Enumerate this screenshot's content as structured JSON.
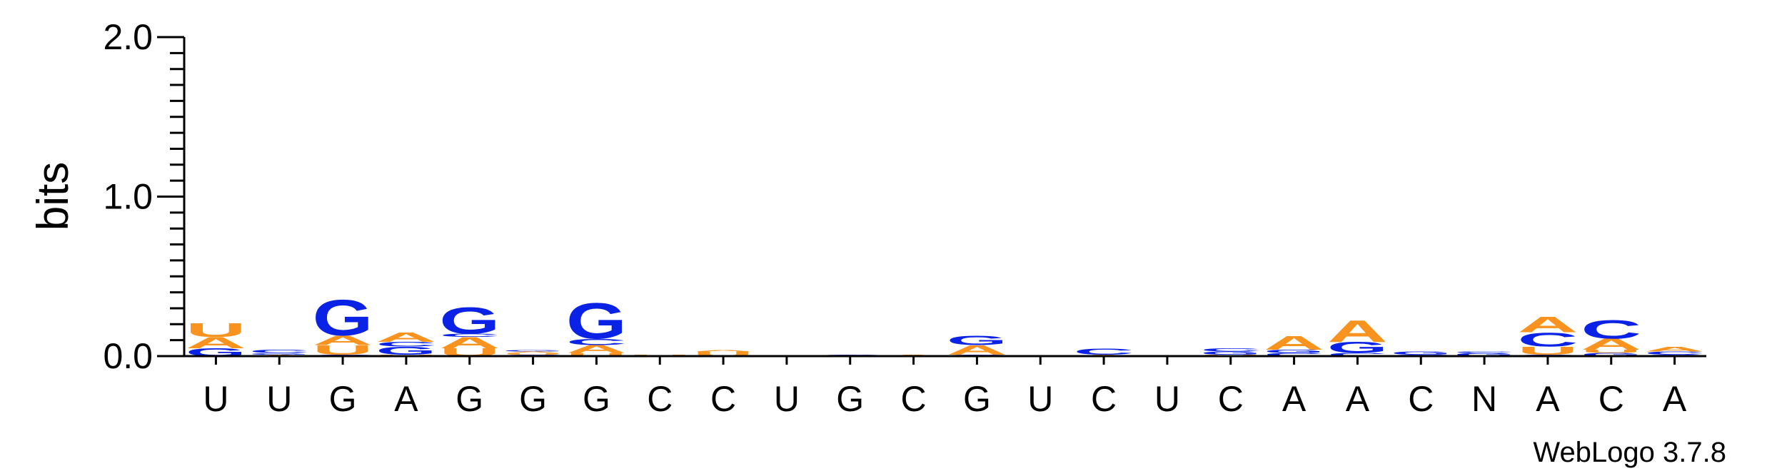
{
  "chart_data": {
    "type": "sequence-logo",
    "ylabel": "bits",
    "ylim": [
      0,
      2.0
    ],
    "yticks": [
      "0.0",
      "1.0",
      "2.0"
    ],
    "credit": "WebLogo 3.7.8",
    "colors": {
      "A": "#f7931e",
      "U": "#f7931e",
      "G": "#0a22e6",
      "C": "#0a22e6",
      "N": "#0a22e6"
    },
    "positions": [
      {
        "label": "U",
        "stack": [
          {
            "letter": "G",
            "height": 0.05
          },
          {
            "letter": "A",
            "height": 0.07
          },
          {
            "letter": "U",
            "height": 0.09
          }
        ]
      },
      {
        "label": "U",
        "stack": [
          {
            "letter": "A",
            "height": 0.01
          },
          {
            "letter": "G",
            "height": 0.01
          },
          {
            "letter": "C",
            "height": 0.02
          }
        ]
      },
      {
        "label": "G",
        "stack": [
          {
            "letter": "C",
            "height": 0.01
          },
          {
            "letter": "U",
            "height": 0.06
          },
          {
            "letter": "A",
            "height": 0.06
          },
          {
            "letter": "G",
            "height": 0.23
          }
        ]
      },
      {
        "label": "A",
        "stack": [
          {
            "letter": "U",
            "height": 0.01
          },
          {
            "letter": "G",
            "height": 0.05
          },
          {
            "letter": "C",
            "height": 0.03
          },
          {
            "letter": "A",
            "height": 0.06
          }
        ]
      },
      {
        "label": "G",
        "stack": [
          {
            "letter": "U",
            "height": 0.05
          },
          {
            "letter": "A",
            "height": 0.07
          },
          {
            "letter": "C",
            "height": 0.02
          },
          {
            "letter": "G",
            "height": 0.17
          }
        ]
      },
      {
        "label": "G",
        "stack": [
          {
            "letter": "C",
            "height": 0.01
          },
          {
            "letter": "U",
            "height": 0.01
          },
          {
            "letter": "A",
            "height": 0.01
          },
          {
            "letter": "G",
            "height": 0.01
          }
        ]
      },
      {
        "label": "G",
        "stack": [
          {
            "letter": "U",
            "height": 0.02
          },
          {
            "letter": "A",
            "height": 0.05
          },
          {
            "letter": "C",
            "height": 0.04
          },
          {
            "letter": "G",
            "height": 0.23
          }
        ]
      },
      {
        "label": "C",
        "stack": [
          {
            "letter": "U",
            "height": 0.01
          }
        ]
      },
      {
        "label": "C",
        "stack": [
          {
            "letter": "U",
            "height": 0.03
          },
          {
            "letter": "A",
            "height": 0.01
          }
        ]
      },
      {
        "label": "U",
        "stack": [
          {
            "letter": "G",
            "height": 0.005
          }
        ]
      },
      {
        "label": "G",
        "stack": [
          {
            "letter": "C",
            "height": 0.01
          }
        ]
      },
      {
        "label": "C",
        "stack": [
          {
            "letter": "A",
            "height": 0.01
          }
        ]
      },
      {
        "label": "G",
        "stack": [
          {
            "letter": "C",
            "height": 0.01
          },
          {
            "letter": "A",
            "height": 0.06
          },
          {
            "letter": "G",
            "height": 0.06
          }
        ]
      },
      {
        "label": "U",
        "stack": [
          {
            "letter": "A",
            "height": 0.005
          }
        ]
      },
      {
        "label": "C",
        "stack": [
          {
            "letter": "A",
            "height": 0.01
          },
          {
            "letter": "C",
            "height": 0.04
          }
        ]
      },
      {
        "label": "U",
        "stack": [
          {
            "letter": "A",
            "height": 0.005
          }
        ]
      },
      {
        "label": "C",
        "stack": [
          {
            "letter": "U",
            "height": 0.01
          },
          {
            "letter": "G",
            "height": 0.02
          },
          {
            "letter": "C",
            "height": 0.02
          }
        ]
      },
      {
        "label": "A",
        "stack": [
          {
            "letter": "C",
            "height": 0.02
          },
          {
            "letter": "G",
            "height": 0.02
          },
          {
            "letter": "A",
            "height": 0.09
          }
        ]
      },
      {
        "label": "A",
        "stack": [
          {
            "letter": "C",
            "height": 0.02
          },
          {
            "letter": "G",
            "height": 0.07
          },
          {
            "letter": "A",
            "height": 0.14
          }
        ]
      },
      {
        "label": "C",
        "stack": [
          {
            "letter": "C",
            "height": 0.01
          },
          {
            "letter": "G",
            "height": 0.02
          }
        ]
      },
      {
        "label": "N",
        "stack": [
          {
            "letter": "G",
            "height": 0.02
          },
          {
            "letter": "C",
            "height": 0.01
          }
        ]
      },
      {
        "label": "A",
        "stack": [
          {
            "letter": "G",
            "height": 0.01
          },
          {
            "letter": "U",
            "height": 0.05
          },
          {
            "letter": "C",
            "height": 0.09
          },
          {
            "letter": "A",
            "height": 0.1
          }
        ]
      },
      {
        "label": "C",
        "stack": [
          {
            "letter": "G",
            "height": 0.02
          },
          {
            "letter": "U",
            "height": 0.02
          },
          {
            "letter": "A",
            "height": 0.07
          },
          {
            "letter": "C",
            "height": 0.12
          }
        ]
      },
      {
        "label": "A",
        "stack": [
          {
            "letter": "G",
            "height": 0.01
          },
          {
            "letter": "C",
            "height": 0.02
          },
          {
            "letter": "A",
            "height": 0.03
          }
        ]
      }
    ]
  }
}
